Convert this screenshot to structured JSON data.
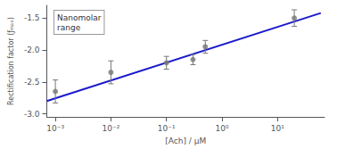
{
  "chart_data": {
    "type": "scatter",
    "xlabel": "[Ach] / μM",
    "ylabel": "Rectification factor (ƒₘₐₓ)",
    "annotation": "Nanomolar\nrange",
    "log": "x",
    "grid": false,
    "xlim": [
      0.0007,
      70
    ],
    "ylim": [
      -3.05,
      -1.3
    ],
    "xticks": [
      {
        "value": 0.001,
        "label": "10⁻³"
      },
      {
        "value": 0.01,
        "label": "10⁻²"
      },
      {
        "value": 0.1,
        "label": "10⁻¹"
      },
      {
        "value": 1,
        "label": "10⁰"
      },
      {
        "value": 10,
        "label": "10¹"
      }
    ],
    "yticks": [
      {
        "value": -3.0,
        "label": "-3.0"
      },
      {
        "value": -2.5,
        "label": "-2.5"
      },
      {
        "value": -2.0,
        "label": "-2.0"
      },
      {
        "value": -1.5,
        "label": "-1.5"
      }
    ],
    "series": [
      {
        "type": "line",
        "color": "#1a1acc",
        "x": [
          0.0007,
          60
        ],
        "values": [
          -2.8,
          -1.42
        ]
      },
      {
        "type": "scatter",
        "color": "#777777",
        "x": [
          0.001,
          0.01,
          0.1,
          0.3,
          0.5,
          20
        ],
        "values": [
          -2.65,
          -2.35,
          -2.2,
          -2.15,
          -1.95,
          -1.5
        ],
        "errors": [
          0.18,
          0.18,
          0.1,
          0.08,
          0.1,
          0.13
        ]
      }
    ]
  }
}
